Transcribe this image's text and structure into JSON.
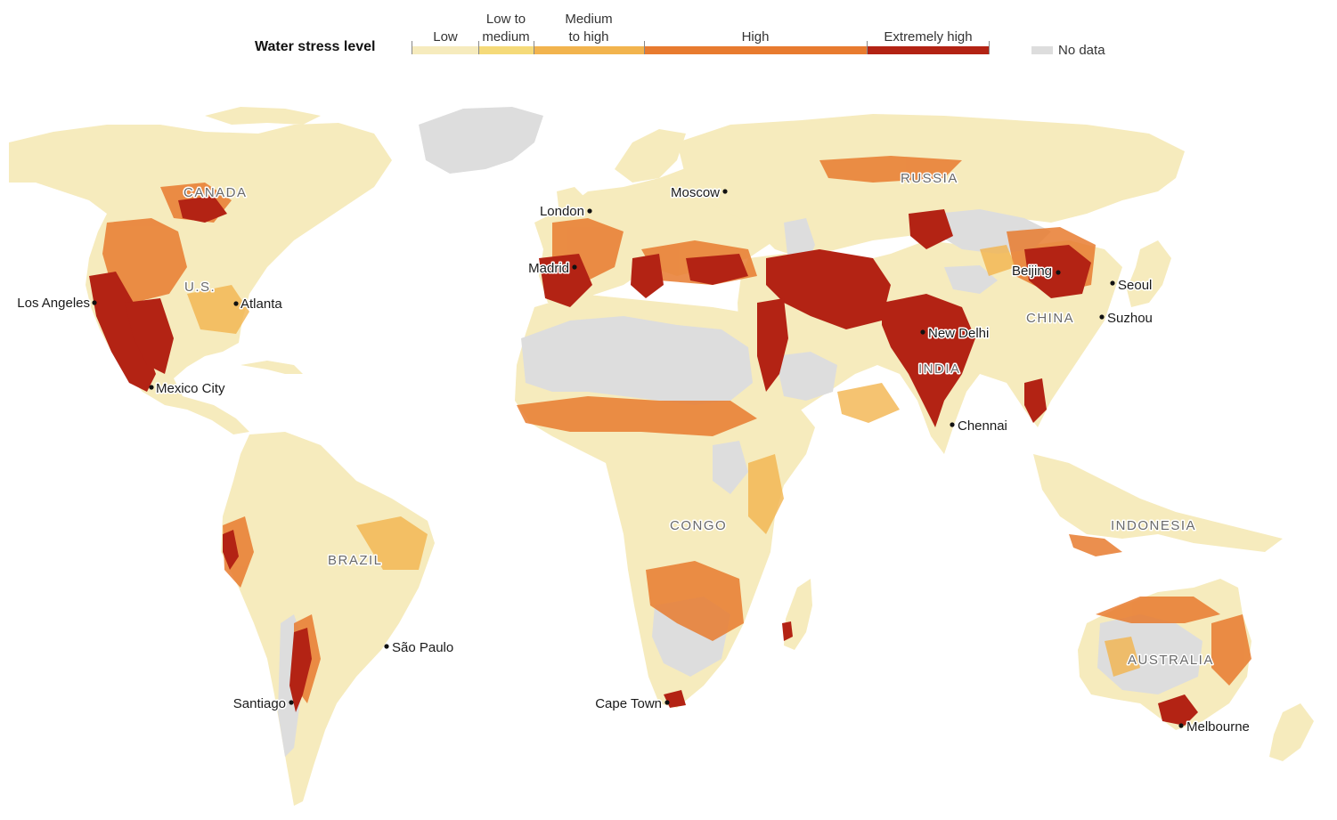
{
  "legend": {
    "title": "Water stress level",
    "categories": [
      {
        "label": "Low",
        "color": "#f6ebbd"
      },
      {
        "label": "Low to\nmedium",
        "color": "#f5da79"
      },
      {
        "label": "Medium\nto high",
        "color": "#f2b44e"
      },
      {
        "label": "High",
        "color": "#e87b2f"
      },
      {
        "label": "Extremely high",
        "color": "#b32314"
      }
    ],
    "no_data_label": "No data",
    "no_data_color": "#dddddd"
  },
  "map": {
    "countries": [
      "CANADA",
      "U.S.",
      "BRAZIL",
      "RUSSIA",
      "CONGO",
      "INDIA",
      "CHINA",
      "INDONESIA",
      "AUSTRALIA"
    ],
    "cities": [
      "Los Angeles",
      "Atlanta",
      "Mexico City",
      "Santiago",
      "São Paulo",
      "London",
      "Madrid",
      "Moscow",
      "Cape Town",
      "New Delhi",
      "Chennai",
      "Beijing",
      "Seoul",
      "Suzhou",
      "Melbourne"
    ]
  }
}
